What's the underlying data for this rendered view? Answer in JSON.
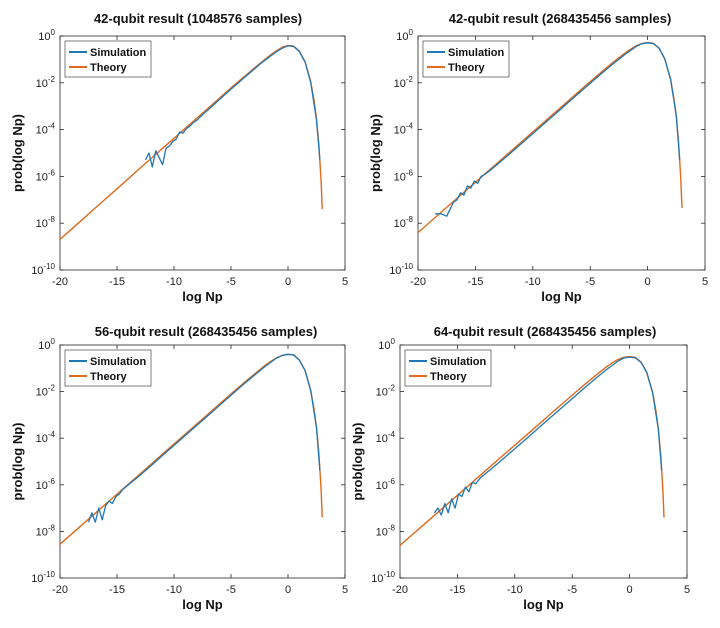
{
  "chart_data": [
    {
      "type": "line",
      "title": "42-qubit result (1048576 samples)",
      "xlabel": "log Np",
      "ylabel": "prob(log Np)",
      "xlim": [
        -20,
        5
      ],
      "ylim_exponent": [
        -10,
        0
      ],
      "yscale": "log",
      "xticks": [
        "-20",
        "-15",
        "-10",
        "-5",
        "0",
        "5"
      ],
      "yticks_exponent": [
        "-10",
        "-8",
        "-6",
        "-4",
        "-2",
        "0"
      ],
      "ytick_base": "10",
      "legend": "top-left",
      "colors": {
        "Simulation": "#1f77b4",
        "Theory": "#e06a1b"
      },
      "series": [
        {
          "name": "Simulation",
          "x": [
            -12.5,
            -12.2,
            -11.9,
            -11.6,
            -11.3,
            -11.0,
            -10.7,
            -10.4,
            -10.1,
            -9.8,
            -9.5,
            -9.2,
            -8.9,
            -8.6,
            -8.3,
            -8.0,
            -7.5,
            -7.0,
            -6.5,
            -6.0,
            -5.5,
            -5.0,
            -4.5,
            -4.0,
            -3.5,
            -3.0,
            -2.5,
            -2.0,
            -1.5,
            -1.0,
            -0.5,
            0.0,
            0.5,
            1.0,
            1.5,
            2.0,
            2.5,
            2.8
          ],
          "y_exponent": [
            -5.3,
            -5.0,
            -5.6,
            -4.9,
            -5.2,
            -5.5,
            -4.8,
            -4.7,
            -4.5,
            -4.4,
            -4.1,
            -4.15,
            -3.95,
            -3.85,
            -3.7,
            -3.6,
            -3.36,
            -3.15,
            -2.93,
            -2.71,
            -2.49,
            -2.27,
            -2.06,
            -1.85,
            -1.64,
            -1.43,
            -1.22,
            -1.03,
            -0.84,
            -0.67,
            -0.52,
            -0.42,
            -0.45,
            -0.67,
            -1.12,
            -2.0,
            -3.6,
            -5.3
          ]
        },
        {
          "name": "Theory",
          "x": [
            -20,
            -19,
            -18,
            -17,
            -16,
            -15,
            -14,
            -13,
            -12,
            -11,
            -10,
            -9,
            -8,
            -7,
            -6,
            -5,
            -4,
            -3,
            -2,
            -1.5,
            -1,
            -0.5,
            0,
            0.5,
            1,
            1.5,
            2,
            2.3,
            2.5,
            2.7,
            2.9,
            3.0
          ],
          "y_exponent": [
            -8.69,
            -8.26,
            -7.83,
            -7.39,
            -6.96,
            -6.53,
            -6.1,
            -5.66,
            -5.23,
            -4.8,
            -4.37,
            -3.94,
            -3.51,
            -3.08,
            -2.65,
            -2.22,
            -1.8,
            -1.39,
            -0.99,
            -0.8,
            -0.63,
            -0.48,
            -0.4,
            -0.43,
            -0.65,
            -1.1,
            -1.97,
            -2.8,
            -3.55,
            -4.6,
            -6.2,
            -7.4
          ]
        }
      ]
    },
    {
      "type": "line",
      "title": "42-qubit result (268435456 samples)",
      "xlabel": "log Np",
      "ylabel": "prob(log Np)",
      "xlim": [
        -20,
        5
      ],
      "ylim_exponent": [
        -10,
        0
      ],
      "yscale": "log",
      "xticks": [
        "-20",
        "-15",
        "-10",
        "-5",
        "0",
        "5"
      ],
      "yticks_exponent": [
        "-10",
        "-8",
        "-6",
        "-4",
        "-2",
        "0"
      ],
      "ytick_base": "10",
      "legend": "top-left",
      "colors": {
        "Simulation": "#1f77b4",
        "Theory": "#e06a1b"
      },
      "series": [
        {
          "name": "Simulation",
          "x": [
            -18.5,
            -18.0,
            -17.5,
            -17.2,
            -16.9,
            -16.6,
            -16.3,
            -16.0,
            -15.7,
            -15.4,
            -15.1,
            -14.8,
            -14.5,
            -14.0,
            -13.5,
            -13.0,
            -12.0,
            -11.0,
            -10.0,
            -9.0,
            -8.0,
            -7.0,
            -6.0,
            -5.0,
            -4.0,
            -3.0,
            -2.0,
            -1.0,
            -0.5,
            0.0,
            0.5,
            1.0,
            1.5,
            2.0,
            2.5,
            2.8
          ],
          "y_exponent": [
            -7.6,
            -7.6,
            -7.7,
            -7.4,
            -7.1,
            -7.0,
            -6.7,
            -6.8,
            -6.4,
            -6.5,
            -6.2,
            -6.3,
            -6.0,
            -5.85,
            -5.66,
            -5.45,
            -5.03,
            -4.6,
            -4.17,
            -3.74,
            -3.31,
            -2.88,
            -2.45,
            -2.02,
            -1.6,
            -1.19,
            -0.8,
            -0.45,
            -0.33,
            -0.29,
            -0.32,
            -0.52,
            -0.98,
            -1.85,
            -3.4,
            -5.3
          ]
        },
        {
          "name": "Theory",
          "x": [
            -20,
            -19,
            -18,
            -17,
            -16,
            -15,
            -14,
            -13,
            -12,
            -11,
            -10,
            -9,
            -8,
            -7,
            -6,
            -5,
            -4,
            -3,
            -2,
            -1.5,
            -1,
            -0.5,
            0,
            0.5,
            1,
            1.5,
            2,
            2.3,
            2.5,
            2.7,
            2.9,
            3.0
          ],
          "y_exponent": [
            -8.4,
            -7.97,
            -7.54,
            -7.11,
            -6.68,
            -6.25,
            -5.82,
            -5.39,
            -4.96,
            -4.53,
            -4.1,
            -3.67,
            -3.24,
            -2.81,
            -2.38,
            -1.95,
            -1.53,
            -1.12,
            -0.74,
            -0.57,
            -0.42,
            -0.32,
            -0.28,
            -0.31,
            -0.52,
            -0.98,
            -1.85,
            -2.7,
            -3.45,
            -4.55,
            -6.2,
            -7.35
          ]
        }
      ]
    },
    {
      "type": "line",
      "title": "56-qubit result (268435456 samples)",
      "xlabel": "log Np",
      "ylabel": "prob(log Np)",
      "xlim": [
        -20,
        5
      ],
      "ylim_exponent": [
        -10,
        0
      ],
      "yscale": "log",
      "xticks": [
        "-20",
        "-15",
        "-10",
        "-5",
        "0",
        "5"
      ],
      "yticks_exponent": [
        "-10",
        "-8",
        "-6",
        "-4",
        "-2",
        "0"
      ],
      "ytick_base": "10",
      "legend": "top-left",
      "colors": {
        "Simulation": "#1f77b4",
        "Theory": "#e06a1b"
      },
      "series": [
        {
          "name": "Simulation",
          "x": [
            -17.5,
            -17.2,
            -16.9,
            -16.6,
            -16.3,
            -16.0,
            -15.7,
            -15.4,
            -15.1,
            -14.8,
            -14.5,
            -14.0,
            -13.5,
            -13.0,
            -12.0,
            -11.0,
            -10.0,
            -9.0,
            -8.0,
            -7.0,
            -6.0,
            -5.0,
            -4.0,
            -3.0,
            -2.0,
            -1.0,
            -0.5,
            0.0,
            0.5,
            1.0,
            1.5,
            2.0,
            2.5,
            2.8
          ],
          "y_exponent": [
            -7.6,
            -7.2,
            -7.6,
            -7.0,
            -7.5,
            -6.9,
            -6.7,
            -6.8,
            -6.5,
            -6.4,
            -6.2,
            -6.0,
            -5.8,
            -5.6,
            -5.17,
            -4.74,
            -4.31,
            -3.88,
            -3.45,
            -3.02,
            -2.59,
            -2.16,
            -1.73,
            -1.32,
            -0.92,
            -0.56,
            -0.44,
            -0.4,
            -0.43,
            -0.65,
            -1.1,
            -1.97,
            -3.55,
            -5.4
          ]
        },
        {
          "name": "Theory",
          "x": [
            -20,
            -19,
            -18,
            -17,
            -16,
            -15,
            -14,
            -13,
            -12,
            -11,
            -10,
            -9,
            -8,
            -7,
            -6,
            -5,
            -4,
            -3,
            -2,
            -1.5,
            -1,
            -0.5,
            0,
            0.5,
            1,
            1.5,
            2,
            2.3,
            2.5,
            2.7,
            2.9,
            3.0
          ],
          "y_exponent": [
            -8.55,
            -8.12,
            -7.69,
            -7.26,
            -6.83,
            -6.4,
            -5.97,
            -5.54,
            -5.11,
            -4.68,
            -4.25,
            -3.82,
            -3.39,
            -2.96,
            -2.53,
            -2.1,
            -1.68,
            -1.27,
            -0.87,
            -0.7,
            -0.55,
            -0.45,
            -0.4,
            -0.43,
            -0.65,
            -1.1,
            -1.97,
            -2.8,
            -3.55,
            -4.6,
            -6.2,
            -7.4
          ]
        }
      ]
    },
    {
      "type": "line",
      "title": "64-qubit result (268435456 samples)",
      "xlabel": "log Np",
      "ylabel": "prob(log Np)",
      "xlim": [
        -20,
        5
      ],
      "ylim_exponent": [
        -10,
        0
      ],
      "yscale": "log",
      "xticks": [
        "-20",
        "-15",
        "-10",
        "-5",
        "0",
        "5"
      ],
      "yticks_exponent": [
        "-10",
        "-8",
        "-6",
        "-4",
        "-2",
        "0"
      ],
      "ytick_base": "10",
      "legend": "top-left",
      "colors": {
        "Simulation": "#1f77b4",
        "Theory": "#e06a1b"
      },
      "series": [
        {
          "name": "Simulation",
          "x": [
            -17.0,
            -16.7,
            -16.4,
            -16.1,
            -15.8,
            -15.5,
            -15.2,
            -14.9,
            -14.6,
            -14.3,
            -14.0,
            -13.7,
            -13.4,
            -13.0,
            -12.5,
            -12.0,
            -11.0,
            -10.0,
            -9.0,
            -8.0,
            -7.0,
            -6.0,
            -5.0,
            -4.0,
            -3.0,
            -2.0,
            -1.0,
            -0.5,
            0.0,
            0.5,
            1.0,
            1.5,
            2.0,
            2.5,
            2.8
          ],
          "y_exponent": [
            -7.2,
            -7.0,
            -7.3,
            -6.8,
            -7.2,
            -6.6,
            -7.0,
            -6.4,
            -6.5,
            -6.1,
            -6.3,
            -5.9,
            -5.95,
            -5.7,
            -5.5,
            -5.3,
            -4.88,
            -4.45,
            -4.02,
            -3.59,
            -3.16,
            -2.73,
            -2.3,
            -1.87,
            -1.45,
            -1.05,
            -0.69,
            -0.56,
            -0.52,
            -0.55,
            -0.75,
            -1.18,
            -2.05,
            -3.6,
            -5.4
          ]
        },
        {
          "name": "Theory",
          "x": [
            -20,
            -19,
            -18,
            -17,
            -16,
            -15,
            -14,
            -13,
            -12,
            -11,
            -10,
            -9,
            -8,
            -7,
            -6,
            -5,
            -4,
            -3,
            -2,
            -1.5,
            -1,
            -0.5,
            0,
            0.5,
            1,
            1.5,
            2,
            2.3,
            2.5,
            2.7,
            2.9,
            3.0
          ],
          "y_exponent": [
            -8.6,
            -8.17,
            -7.74,
            -7.31,
            -6.88,
            -6.45,
            -6.02,
            -5.59,
            -5.16,
            -4.73,
            -4.3,
            -3.87,
            -3.44,
            -3.01,
            -2.58,
            -2.15,
            -1.73,
            -1.32,
            -0.93,
            -0.76,
            -0.62,
            -0.53,
            -0.5,
            -0.53,
            -0.74,
            -1.18,
            -2.03,
            -2.85,
            -3.6,
            -4.65,
            -6.25,
            -7.4
          ]
        }
      ]
    }
  ]
}
